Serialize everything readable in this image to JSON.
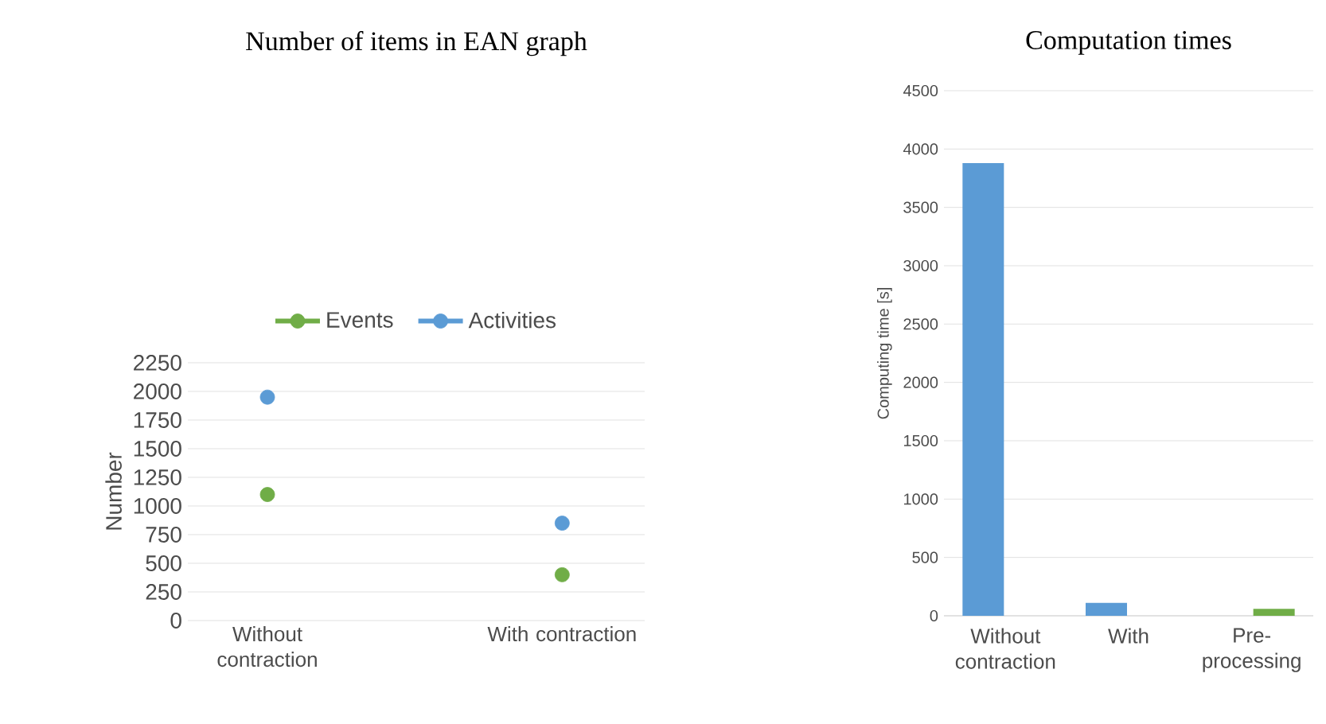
{
  "chart_data": [
    {
      "type": "scatter",
      "title": "Number of items in EAN graph",
      "ylabel": "Number",
      "categories": [
        "Without contraction",
        "With contraction"
      ],
      "series": [
        {
          "name": "Events",
          "color": "#70ad47",
          "values": [
            1100,
            400
          ]
        },
        {
          "name": "Activities",
          "color": "#5b9bd5",
          "values": [
            1950,
            850
          ]
        }
      ],
      "ylim": [
        0,
        2250
      ],
      "yticks": [
        0,
        250,
        500,
        750,
        1000,
        1250,
        1500,
        1750,
        2000,
        2250
      ],
      "grid": "y",
      "legend": "top",
      "marker": "circle"
    },
    {
      "type": "bar",
      "title": "Computation times",
      "ylabel": "Computing time [s]",
      "categories": [
        "Without contraction",
        "With",
        "Pre-processing"
      ],
      "series": [
        {
          "color": "#5b9bd5",
          "values": [
            3880,
            110,
            null
          ]
        },
        {
          "color": "#70ad47",
          "values": [
            null,
            null,
            60
          ]
        }
      ],
      "ylim": [
        0,
        4500
      ],
      "yticks": [
        0,
        500,
        1000,
        1500,
        2000,
        2500,
        3000,
        3500,
        4000,
        4500
      ],
      "grid": "y"
    }
  ]
}
